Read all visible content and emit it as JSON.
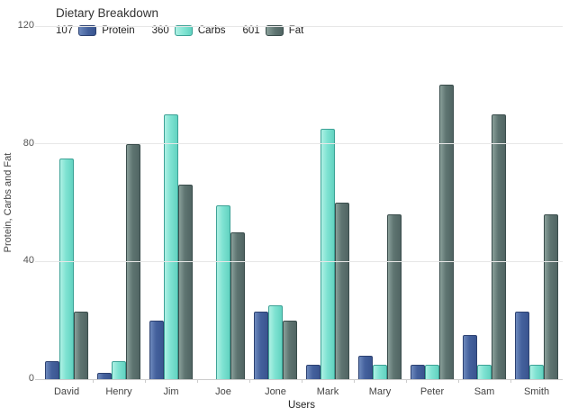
{
  "title": "Dietary Breakdown",
  "axes": {
    "x_title": "Users",
    "y_title": "Protein, Carbs and Fat"
  },
  "colors": {
    "background": "#ffffff",
    "grid": "#e7e7e7",
    "axis": "#cccccc",
    "tick_text": "#555555",
    "title_text": "#333333"
  },
  "chart_data": {
    "type": "bar",
    "title": "Dietary Breakdown",
    "xlabel": "Users",
    "ylabel": "Protein, Carbs and Fat",
    "ylim": [
      0,
      120
    ],
    "yticks": [
      0,
      40,
      80,
      120
    ],
    "grid": true,
    "legend_position": "top-left",
    "categories": [
      "David",
      "Henry",
      "Jim",
      "Joe",
      "Jone",
      "Mark",
      "Mary",
      "Peter",
      "Sam",
      "Smith"
    ],
    "series": [
      {
        "name": "Protein",
        "legend_total": "107",
        "values": [
          6,
          2,
          20,
          0,
          23,
          5,
          8,
          5,
          15,
          23
        ],
        "fill": "#44619d",
        "fill_light": "#6d89bd",
        "fill_dark": "#3a5590",
        "border": "#2d4272"
      },
      {
        "name": "Carbs",
        "legend_total": "360",
        "values": [
          75,
          6,
          90,
          59,
          25,
          85,
          5,
          5,
          5,
          5
        ],
        "fill": "#7fe3d2",
        "fill_light": "#aef0e4",
        "fill_dark": "#62d2c1",
        "border": "#3da296"
      },
      {
        "name": "Fat",
        "legend_total": "601",
        "values": [
          23,
          80,
          66,
          50,
          20,
          60,
          56,
          100,
          90,
          56
        ],
        "fill": "#5e7471",
        "fill_light": "#8aa09a",
        "fill_dark": "#516563",
        "border": "#3a4d4c"
      }
    ]
  }
}
